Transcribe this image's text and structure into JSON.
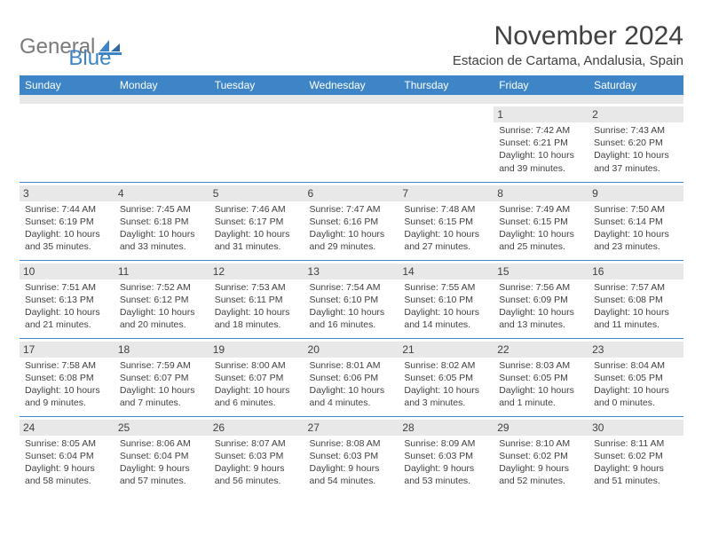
{
  "logo": {
    "word1": "General",
    "word2": "Blue",
    "color1": "#7a7a7a",
    "color2": "#3d85c6"
  },
  "header": {
    "title": "November 2024",
    "location": "Estacion de Cartama, Andalusia, Spain"
  },
  "colors": {
    "accent": "#3d85c6",
    "header_row_bg": "#3d85c6",
    "header_row_text": "#ffffff",
    "daynum_bg": "#e8e8e8",
    "text": "#404040",
    "background": "#ffffff"
  },
  "dow": [
    "Sunday",
    "Monday",
    "Tuesday",
    "Wednesday",
    "Thursday",
    "Friday",
    "Saturday"
  ],
  "weeks": [
    [
      null,
      null,
      null,
      null,
      null,
      {
        "n": "1",
        "sunrise": "Sunrise: 7:42 AM",
        "sunset": "Sunset: 6:21 PM",
        "day1": "Daylight: 10 hours",
        "day2": "and 39 minutes."
      },
      {
        "n": "2",
        "sunrise": "Sunrise: 7:43 AM",
        "sunset": "Sunset: 6:20 PM",
        "day1": "Daylight: 10 hours",
        "day2": "and 37 minutes."
      }
    ],
    [
      {
        "n": "3",
        "sunrise": "Sunrise: 7:44 AM",
        "sunset": "Sunset: 6:19 PM",
        "day1": "Daylight: 10 hours",
        "day2": "and 35 minutes."
      },
      {
        "n": "4",
        "sunrise": "Sunrise: 7:45 AM",
        "sunset": "Sunset: 6:18 PM",
        "day1": "Daylight: 10 hours",
        "day2": "and 33 minutes."
      },
      {
        "n": "5",
        "sunrise": "Sunrise: 7:46 AM",
        "sunset": "Sunset: 6:17 PM",
        "day1": "Daylight: 10 hours",
        "day2": "and 31 minutes."
      },
      {
        "n": "6",
        "sunrise": "Sunrise: 7:47 AM",
        "sunset": "Sunset: 6:16 PM",
        "day1": "Daylight: 10 hours",
        "day2": "and 29 minutes."
      },
      {
        "n": "7",
        "sunrise": "Sunrise: 7:48 AM",
        "sunset": "Sunset: 6:15 PM",
        "day1": "Daylight: 10 hours",
        "day2": "and 27 minutes."
      },
      {
        "n": "8",
        "sunrise": "Sunrise: 7:49 AM",
        "sunset": "Sunset: 6:15 PM",
        "day1": "Daylight: 10 hours",
        "day2": "and 25 minutes."
      },
      {
        "n": "9",
        "sunrise": "Sunrise: 7:50 AM",
        "sunset": "Sunset: 6:14 PM",
        "day1": "Daylight: 10 hours",
        "day2": "and 23 minutes."
      }
    ],
    [
      {
        "n": "10",
        "sunrise": "Sunrise: 7:51 AM",
        "sunset": "Sunset: 6:13 PM",
        "day1": "Daylight: 10 hours",
        "day2": "and 21 minutes."
      },
      {
        "n": "11",
        "sunrise": "Sunrise: 7:52 AM",
        "sunset": "Sunset: 6:12 PM",
        "day1": "Daylight: 10 hours",
        "day2": "and 20 minutes."
      },
      {
        "n": "12",
        "sunrise": "Sunrise: 7:53 AM",
        "sunset": "Sunset: 6:11 PM",
        "day1": "Daylight: 10 hours",
        "day2": "and 18 minutes."
      },
      {
        "n": "13",
        "sunrise": "Sunrise: 7:54 AM",
        "sunset": "Sunset: 6:10 PM",
        "day1": "Daylight: 10 hours",
        "day2": "and 16 minutes."
      },
      {
        "n": "14",
        "sunrise": "Sunrise: 7:55 AM",
        "sunset": "Sunset: 6:10 PM",
        "day1": "Daylight: 10 hours",
        "day2": "and 14 minutes."
      },
      {
        "n": "15",
        "sunrise": "Sunrise: 7:56 AM",
        "sunset": "Sunset: 6:09 PM",
        "day1": "Daylight: 10 hours",
        "day2": "and 13 minutes."
      },
      {
        "n": "16",
        "sunrise": "Sunrise: 7:57 AM",
        "sunset": "Sunset: 6:08 PM",
        "day1": "Daylight: 10 hours",
        "day2": "and 11 minutes."
      }
    ],
    [
      {
        "n": "17",
        "sunrise": "Sunrise: 7:58 AM",
        "sunset": "Sunset: 6:08 PM",
        "day1": "Daylight: 10 hours",
        "day2": "and 9 minutes."
      },
      {
        "n": "18",
        "sunrise": "Sunrise: 7:59 AM",
        "sunset": "Sunset: 6:07 PM",
        "day1": "Daylight: 10 hours",
        "day2": "and 7 minutes."
      },
      {
        "n": "19",
        "sunrise": "Sunrise: 8:00 AM",
        "sunset": "Sunset: 6:07 PM",
        "day1": "Daylight: 10 hours",
        "day2": "and 6 minutes."
      },
      {
        "n": "20",
        "sunrise": "Sunrise: 8:01 AM",
        "sunset": "Sunset: 6:06 PM",
        "day1": "Daylight: 10 hours",
        "day2": "and 4 minutes."
      },
      {
        "n": "21",
        "sunrise": "Sunrise: 8:02 AM",
        "sunset": "Sunset: 6:05 PM",
        "day1": "Daylight: 10 hours",
        "day2": "and 3 minutes."
      },
      {
        "n": "22",
        "sunrise": "Sunrise: 8:03 AM",
        "sunset": "Sunset: 6:05 PM",
        "day1": "Daylight: 10 hours",
        "day2": "and 1 minute."
      },
      {
        "n": "23",
        "sunrise": "Sunrise: 8:04 AM",
        "sunset": "Sunset: 6:05 PM",
        "day1": "Daylight: 10 hours",
        "day2": "and 0 minutes."
      }
    ],
    [
      {
        "n": "24",
        "sunrise": "Sunrise: 8:05 AM",
        "sunset": "Sunset: 6:04 PM",
        "day1": "Daylight: 9 hours",
        "day2": "and 58 minutes."
      },
      {
        "n": "25",
        "sunrise": "Sunrise: 8:06 AM",
        "sunset": "Sunset: 6:04 PM",
        "day1": "Daylight: 9 hours",
        "day2": "and 57 minutes."
      },
      {
        "n": "26",
        "sunrise": "Sunrise: 8:07 AM",
        "sunset": "Sunset: 6:03 PM",
        "day1": "Daylight: 9 hours",
        "day2": "and 56 minutes."
      },
      {
        "n": "27",
        "sunrise": "Sunrise: 8:08 AM",
        "sunset": "Sunset: 6:03 PM",
        "day1": "Daylight: 9 hours",
        "day2": "and 54 minutes."
      },
      {
        "n": "28",
        "sunrise": "Sunrise: 8:09 AM",
        "sunset": "Sunset: 6:03 PM",
        "day1": "Daylight: 9 hours",
        "day2": "and 53 minutes."
      },
      {
        "n": "29",
        "sunrise": "Sunrise: 8:10 AM",
        "sunset": "Sunset: 6:02 PM",
        "day1": "Daylight: 9 hours",
        "day2": "and 52 minutes."
      },
      {
        "n": "30",
        "sunrise": "Sunrise: 8:11 AM",
        "sunset": "Sunset: 6:02 PM",
        "day1": "Daylight: 9 hours",
        "day2": "and 51 minutes."
      }
    ]
  ]
}
